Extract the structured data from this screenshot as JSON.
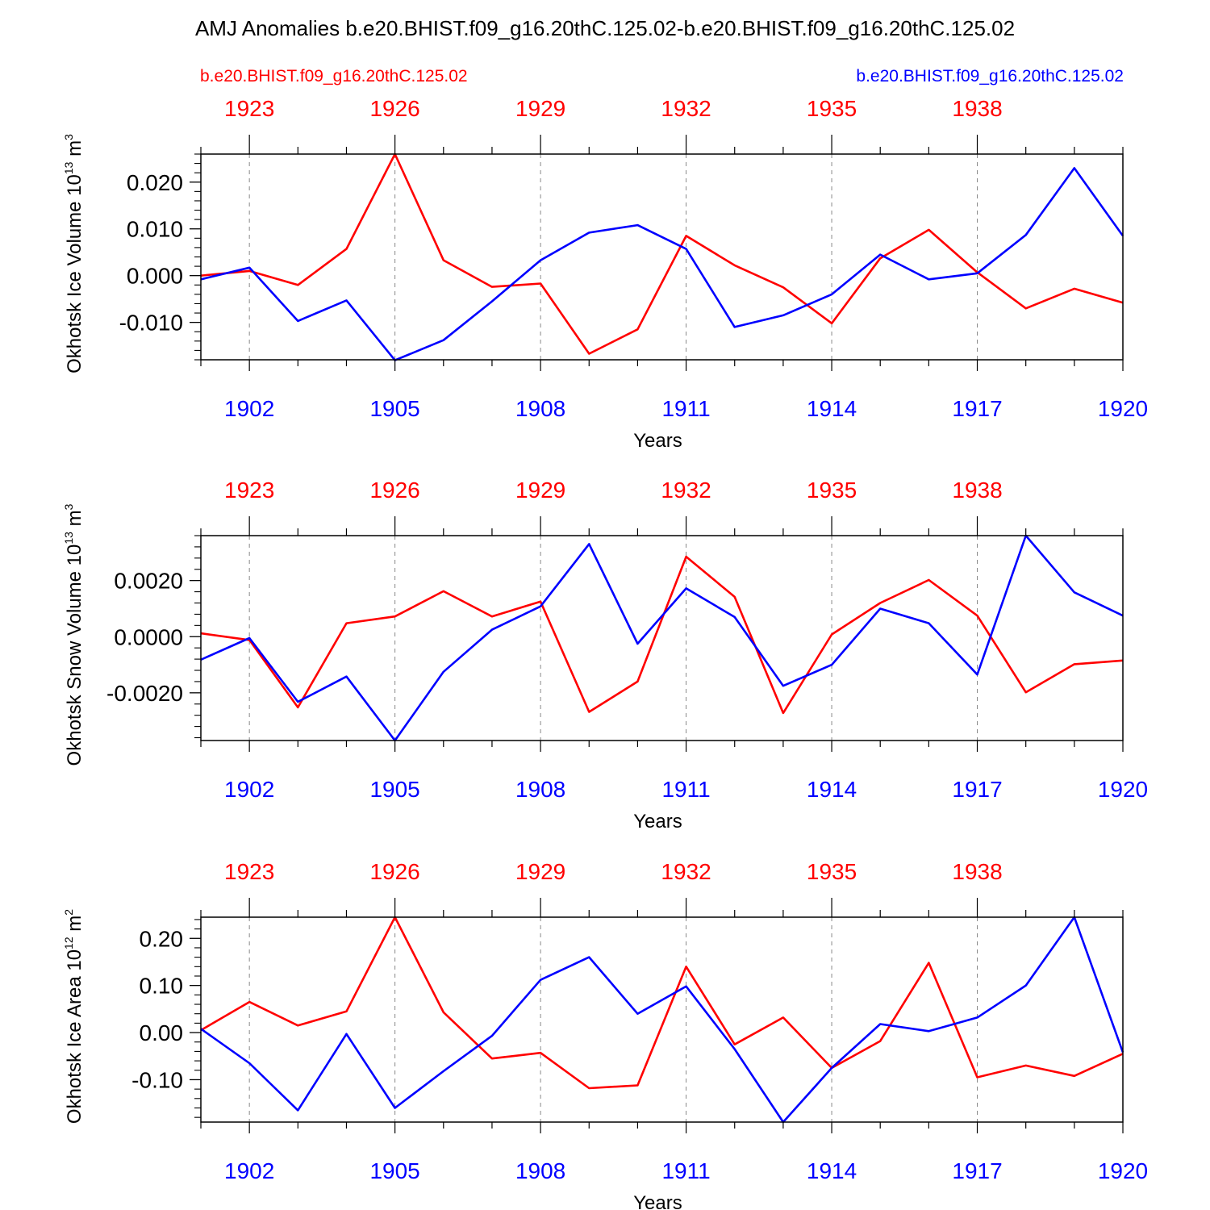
{
  "title": "AMJ Anomalies b.e20.BHIST.f09_g16.20thC.125.02-b.e20.BHIST.f09_g16.20thC.125.02",
  "colors": {
    "red_series": "#ff0000",
    "blue_series": "#0000ff",
    "frame": "#000000",
    "gridline": "#888888"
  },
  "legend": {
    "left_label": "b.e20.BHIST.f09_g16.20thC.125.02",
    "right_label": "b.e20.BHIST.f09_g16.20thC.125.02"
  },
  "chart_data": [
    {
      "type": "line",
      "ylabel": "Okhotsk Ice Volume 10",
      "ylabel_exponent": "13",
      "ylabel_unit": " m",
      "ylabel_unit_exponent": "3",
      "xlabel": "Years",
      "ylim": [
        -0.018,
        0.026
      ],
      "yticks": [
        -0.01,
        0.0,
        0.01,
        0.02
      ],
      "ytick_labels": [
        "-0.010",
        "0.000",
        "0.010",
        "0.020"
      ],
      "yminor_step": 0.002,
      "bottom_axis": {
        "range": [
          1901,
          1920
        ],
        "ticks": [
          1902,
          1905,
          1908,
          1911,
          1914,
          1917,
          1920
        ],
        "labels": [
          "1902",
          "1905",
          "1908",
          "1911",
          "1914",
          "1917",
          "1920"
        ]
      },
      "top_axis": {
        "range": [
          1922,
          1941
        ],
        "ticks": [
          1923,
          1926,
          1929,
          1932,
          1935,
          1938
        ],
        "labels": [
          "1923",
          "1926",
          "1929",
          "1932",
          "1935",
          "1938"
        ]
      },
      "series": [
        {
          "name": "b.e20.BHIST.f09_g16.20thC.125.02",
          "color": "#ff0000",
          "values": [
            0.0,
            0.001,
            -0.002,
            0.0057,
            0.026,
            0.0033,
            -0.0024,
            -0.0017,
            -0.0167,
            -0.0115,
            0.0085,
            0.0022,
            -0.0025,
            -0.0102,
            0.0037,
            0.0098,
            0.0007,
            -0.007,
            -0.0028,
            -0.0058
          ]
        },
        {
          "name": "b.e20.BHIST.f09_g16.20thC.125.02",
          "color": "#0000ff",
          "values": [
            -0.0008,
            0.0017,
            -0.0097,
            -0.0053,
            -0.0181,
            -0.0138,
            -0.0055,
            0.0033,
            0.0092,
            0.0108,
            0.0057,
            -0.011,
            -0.0085,
            -0.004,
            0.0045,
            -0.0008,
            0.0005,
            0.0087,
            0.023,
            0.0085
          ]
        }
      ]
    },
    {
      "type": "line",
      "ylabel": "Okhotsk Snow Volume 10",
      "ylabel_exponent": "13",
      "ylabel_unit": " m",
      "ylabel_unit_exponent": "3",
      "xlabel": "Years",
      "ylim": [
        -0.0037,
        0.0036
      ],
      "yticks": [
        -0.002,
        0.0,
        0.002
      ],
      "ytick_labels": [
        "-0.0020",
        "0.0000",
        "0.0020"
      ],
      "yminor_step": 0.0004,
      "bottom_axis": {
        "range": [
          1901,
          1920
        ],
        "ticks": [
          1902,
          1905,
          1908,
          1911,
          1914,
          1917,
          1920
        ],
        "labels": [
          "1902",
          "1905",
          "1908",
          "1911",
          "1914",
          "1917",
          "1920"
        ]
      },
      "top_axis": {
        "range": [
          1922,
          1941
        ],
        "ticks": [
          1923,
          1926,
          1929,
          1932,
          1935,
          1938
        ],
        "labels": [
          "1923",
          "1926",
          "1929",
          "1932",
          "1935",
          "1938"
        ]
      },
      "series": [
        {
          "name": "b.e20.BHIST.f09_g16.20thC.125.02",
          "color": "#ff0000",
          "values": [
            0.00012,
            -0.00012,
            -0.00252,
            0.00048,
            0.00072,
            0.00162,
            0.00072,
            0.00125,
            -0.00268,
            -0.0016,
            0.00285,
            0.00142,
            -0.00272,
            8e-05,
            0.0012,
            0.00202,
            0.00075,
            -0.00198,
            -0.00098,
            -0.00085
          ]
        },
        {
          "name": "b.e20.BHIST.f09_g16.20thC.125.02",
          "color": "#0000ff",
          "values": [
            -0.00082,
            -5e-05,
            -0.00232,
            -0.00142,
            -0.0037,
            -0.00125,
            0.00025,
            0.00108,
            0.0033,
            -0.00025,
            0.00172,
            0.0007,
            -0.00175,
            -0.001,
            0.001,
            0.00048,
            -0.00135,
            0.0036,
            0.00158,
            0.00075
          ]
        }
      ]
    },
    {
      "type": "line",
      "ylabel": "Okhotsk Ice Area 10",
      "ylabel_exponent": "12",
      "ylabel_unit": " m",
      "ylabel_unit_exponent": "2",
      "xlabel": "Years",
      "ylim": [
        -0.19,
        0.245
      ],
      "yticks": [
        -0.1,
        0.0,
        0.1,
        0.2
      ],
      "ytick_labels": [
        "-0.10",
        "0.00",
        "0.10",
        "0.20"
      ],
      "yminor_step": 0.02,
      "bottom_axis": {
        "range": [
          1901,
          1920
        ],
        "ticks": [
          1902,
          1905,
          1908,
          1911,
          1914,
          1917,
          1920
        ],
        "labels": [
          "1902",
          "1905",
          "1908",
          "1911",
          "1914",
          "1917",
          "1920"
        ]
      },
      "top_axis": {
        "range": [
          1922,
          1941
        ],
        "ticks": [
          1923,
          1926,
          1929,
          1932,
          1935,
          1938
        ],
        "labels": [
          "1923",
          "1926",
          "1929",
          "1932",
          "1935",
          "1938"
        ]
      },
      "series": [
        {
          "name": "b.e20.BHIST.f09_g16.20thC.125.02",
          "color": "#ff0000",
          "values": [
            0.005,
            0.065,
            0.015,
            0.045,
            0.245,
            0.043,
            -0.055,
            -0.043,
            -0.118,
            -0.112,
            0.14,
            -0.025,
            0.032,
            -0.075,
            -0.018,
            0.148,
            -0.095,
            -0.07,
            -0.092,
            -0.045
          ]
        },
        {
          "name": "b.e20.BHIST.f09_g16.20thC.125.02",
          "color": "#0000ff",
          "values": [
            0.008,
            -0.065,
            -0.165,
            -0.003,
            -0.16,
            -0.082,
            -0.007,
            0.112,
            0.16,
            0.04,
            0.098,
            -0.035,
            -0.19,
            -0.075,
            0.018,
            0.003,
            0.032,
            0.1,
            0.245,
            -0.042
          ]
        }
      ]
    }
  ]
}
